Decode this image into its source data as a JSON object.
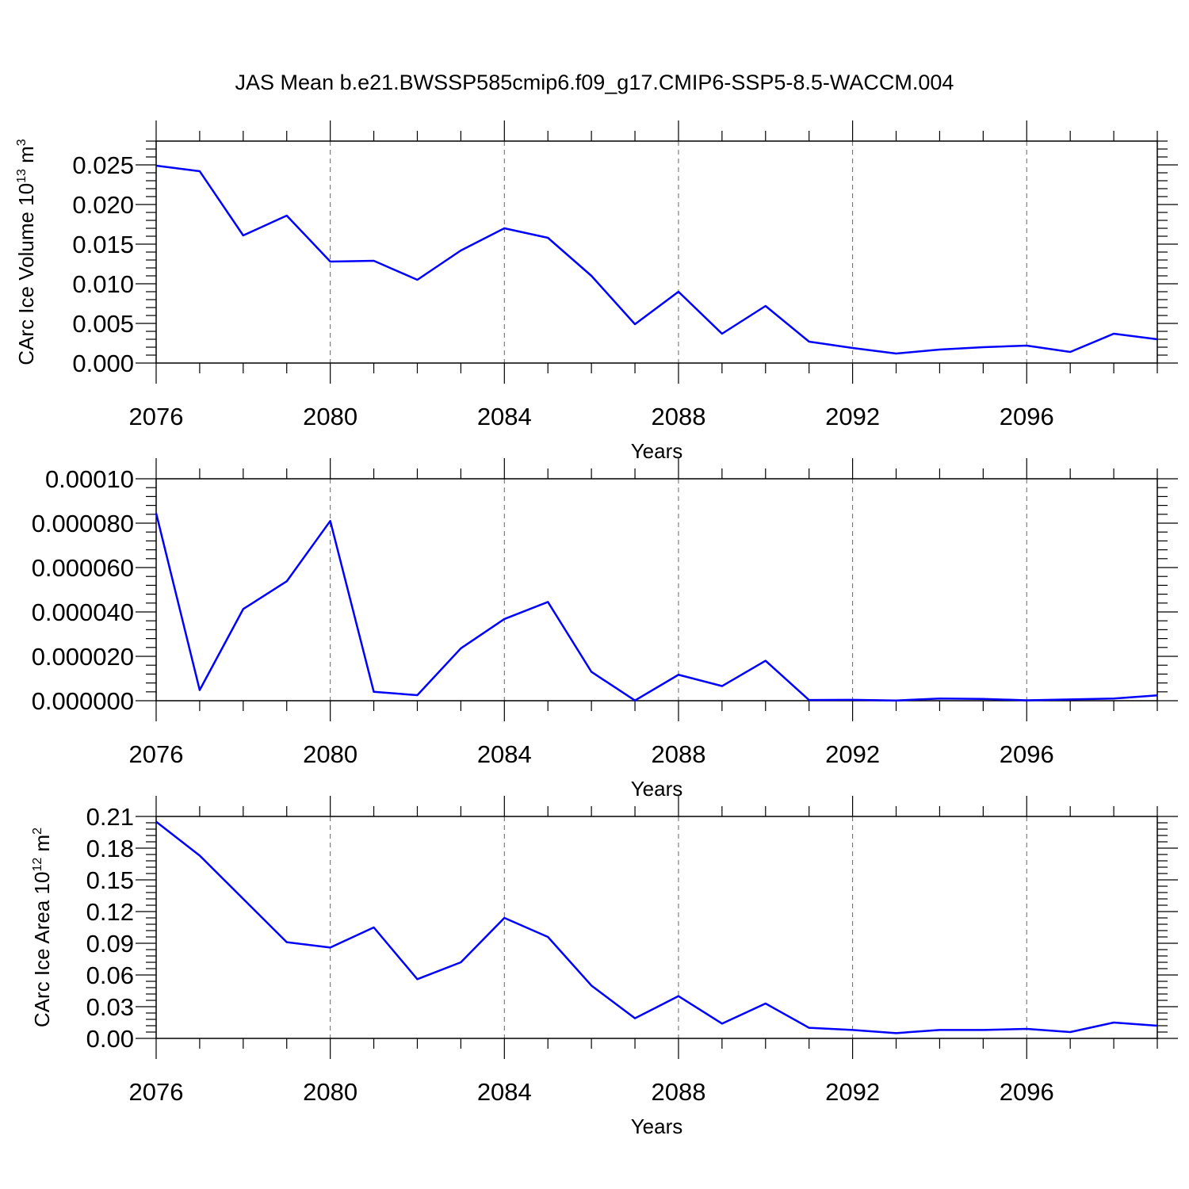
{
  "title": "JAS Mean b.e21.BWSSP585cmip6.f09_g17.CMIP6-SSP5-8.5-WACCM.004",
  "line_color": "#0000ff",
  "chart_data": [
    {
      "type": "line",
      "xlabel": "Years",
      "ylabel": "CArc Ice Volume",
      "ylabel_unit_base": "10",
      "ylabel_unit_exp": "13",
      "ylabel_unit_after": "m",
      "ylabel_unit_exp2": "3",
      "xlim": [
        2076,
        2099
      ],
      "ylim": [
        0,
        0.028
      ],
      "grid": "x-dashed",
      "xticks": [
        2076,
        2080,
        2084,
        2088,
        2092,
        2096
      ],
      "xtick_labels": [
        "2076",
        "2080",
        "2084",
        "2088",
        "2092",
        "2096"
      ],
      "yticks": [
        0,
        0.005,
        0.01,
        0.015,
        0.02,
        0.025
      ],
      "ytick_labels": [
        "0.000",
        "0.005",
        "0.010",
        "0.015",
        "0.020",
        "0.025"
      ],
      "x": [
        2076,
        2077,
        2078,
        2079,
        2080,
        2081,
        2082,
        2083,
        2084,
        2085,
        2086,
        2087,
        2088,
        2089,
        2090,
        2091,
        2092,
        2093,
        2094,
        2095,
        2096,
        2097,
        2098,
        2099
      ],
      "series": [
        {
          "values": [
            0.0249,
            0.0242,
            0.0161,
            0.0186,
            0.0128,
            0.0129,
            0.0105,
            0.0142,
            0.017,
            0.0158,
            0.011,
            0.0049,
            0.009,
            0.0037,
            0.0072,
            0.0027,
            0.0019,
            0.0012,
            0.0017,
            0.002,
            0.0022,
            0.0014,
            0.0037,
            0.003
          ]
        }
      ]
    },
    {
      "type": "line",
      "xlabel": "Years",
      "ylabel": "",
      "xlim": [
        2076,
        2099
      ],
      "ylim": [
        0,
        0.0001
      ],
      "grid": "x-dashed",
      "xticks": [
        2076,
        2080,
        2084,
        2088,
        2092,
        2096
      ],
      "xtick_labels": [
        "2076",
        "2080",
        "2084",
        "2088",
        "2092",
        "2096"
      ],
      "yticks": [
        0,
        2e-05,
        4e-05,
        6e-05,
        8e-05,
        0.0001
      ],
      "ytick_labels": [
        "0.000000",
        "0.000020",
        "0.000040",
        "0.000060",
        "0.000080",
        "0.00010"
      ],
      "x": [
        2076,
        2077,
        2078,
        2079,
        2080,
        2081,
        2082,
        2083,
        2084,
        2085,
        2086,
        2087,
        2088,
        2089,
        2090,
        2091,
        2092,
        2093,
        2094,
        2095,
        2096,
        2097,
        2098,
        2099
      ],
      "series": [
        {
          "values": [
            8.45e-05,
            4.8e-06,
            4.13e-05,
            5.38e-05,
            8.1e-05,
            4e-06,
            2.5e-06,
            2.36e-05,
            3.68e-05,
            4.45e-05,
            1.3e-05,
            1e-07,
            1.17e-05,
            6.6e-06,
            1.8e-05,
            3e-07,
            4e-07,
            1e-07,
            1e-06,
            8e-07,
            2e-07,
            6e-07,
            1e-06,
            2.4e-06
          ]
        }
      ]
    },
    {
      "type": "line",
      "xlabel": "Years",
      "ylabel": "CArc Ice Area",
      "ylabel_unit_base": "10",
      "ylabel_unit_exp": "12",
      "ylabel_unit_after": "m",
      "ylabel_unit_exp2": "2",
      "xlim": [
        2076,
        2099
      ],
      "ylim": [
        0,
        0.21
      ],
      "grid": "x-dashed",
      "xticks": [
        2076,
        2080,
        2084,
        2088,
        2092,
        2096
      ],
      "xtick_labels": [
        "2076",
        "2080",
        "2084",
        "2088",
        "2092",
        "2096"
      ],
      "yticks": [
        0,
        0.03,
        0.06,
        0.09,
        0.12,
        0.15,
        0.18,
        0.21
      ],
      "ytick_labels": [
        "0.00",
        "0.03",
        "0.06",
        "0.09",
        "0.12",
        "0.15",
        "0.18",
        "0.21"
      ],
      "x": [
        2076,
        2077,
        2078,
        2079,
        2080,
        2081,
        2082,
        2083,
        2084,
        2085,
        2086,
        2087,
        2088,
        2089,
        2090,
        2091,
        2092,
        2093,
        2094,
        2095,
        2096,
        2097,
        2098,
        2099
      ],
      "series": [
        {
          "values": [
            0.205,
            0.173,
            0.132,
            0.091,
            0.086,
            0.105,
            0.056,
            0.072,
            0.114,
            0.096,
            0.05,
            0.019,
            0.04,
            0.014,
            0.033,
            0.01,
            0.008,
            0.005,
            0.008,
            0.008,
            0.009,
            0.006,
            0.015,
            0.012
          ]
        }
      ]
    }
  ]
}
